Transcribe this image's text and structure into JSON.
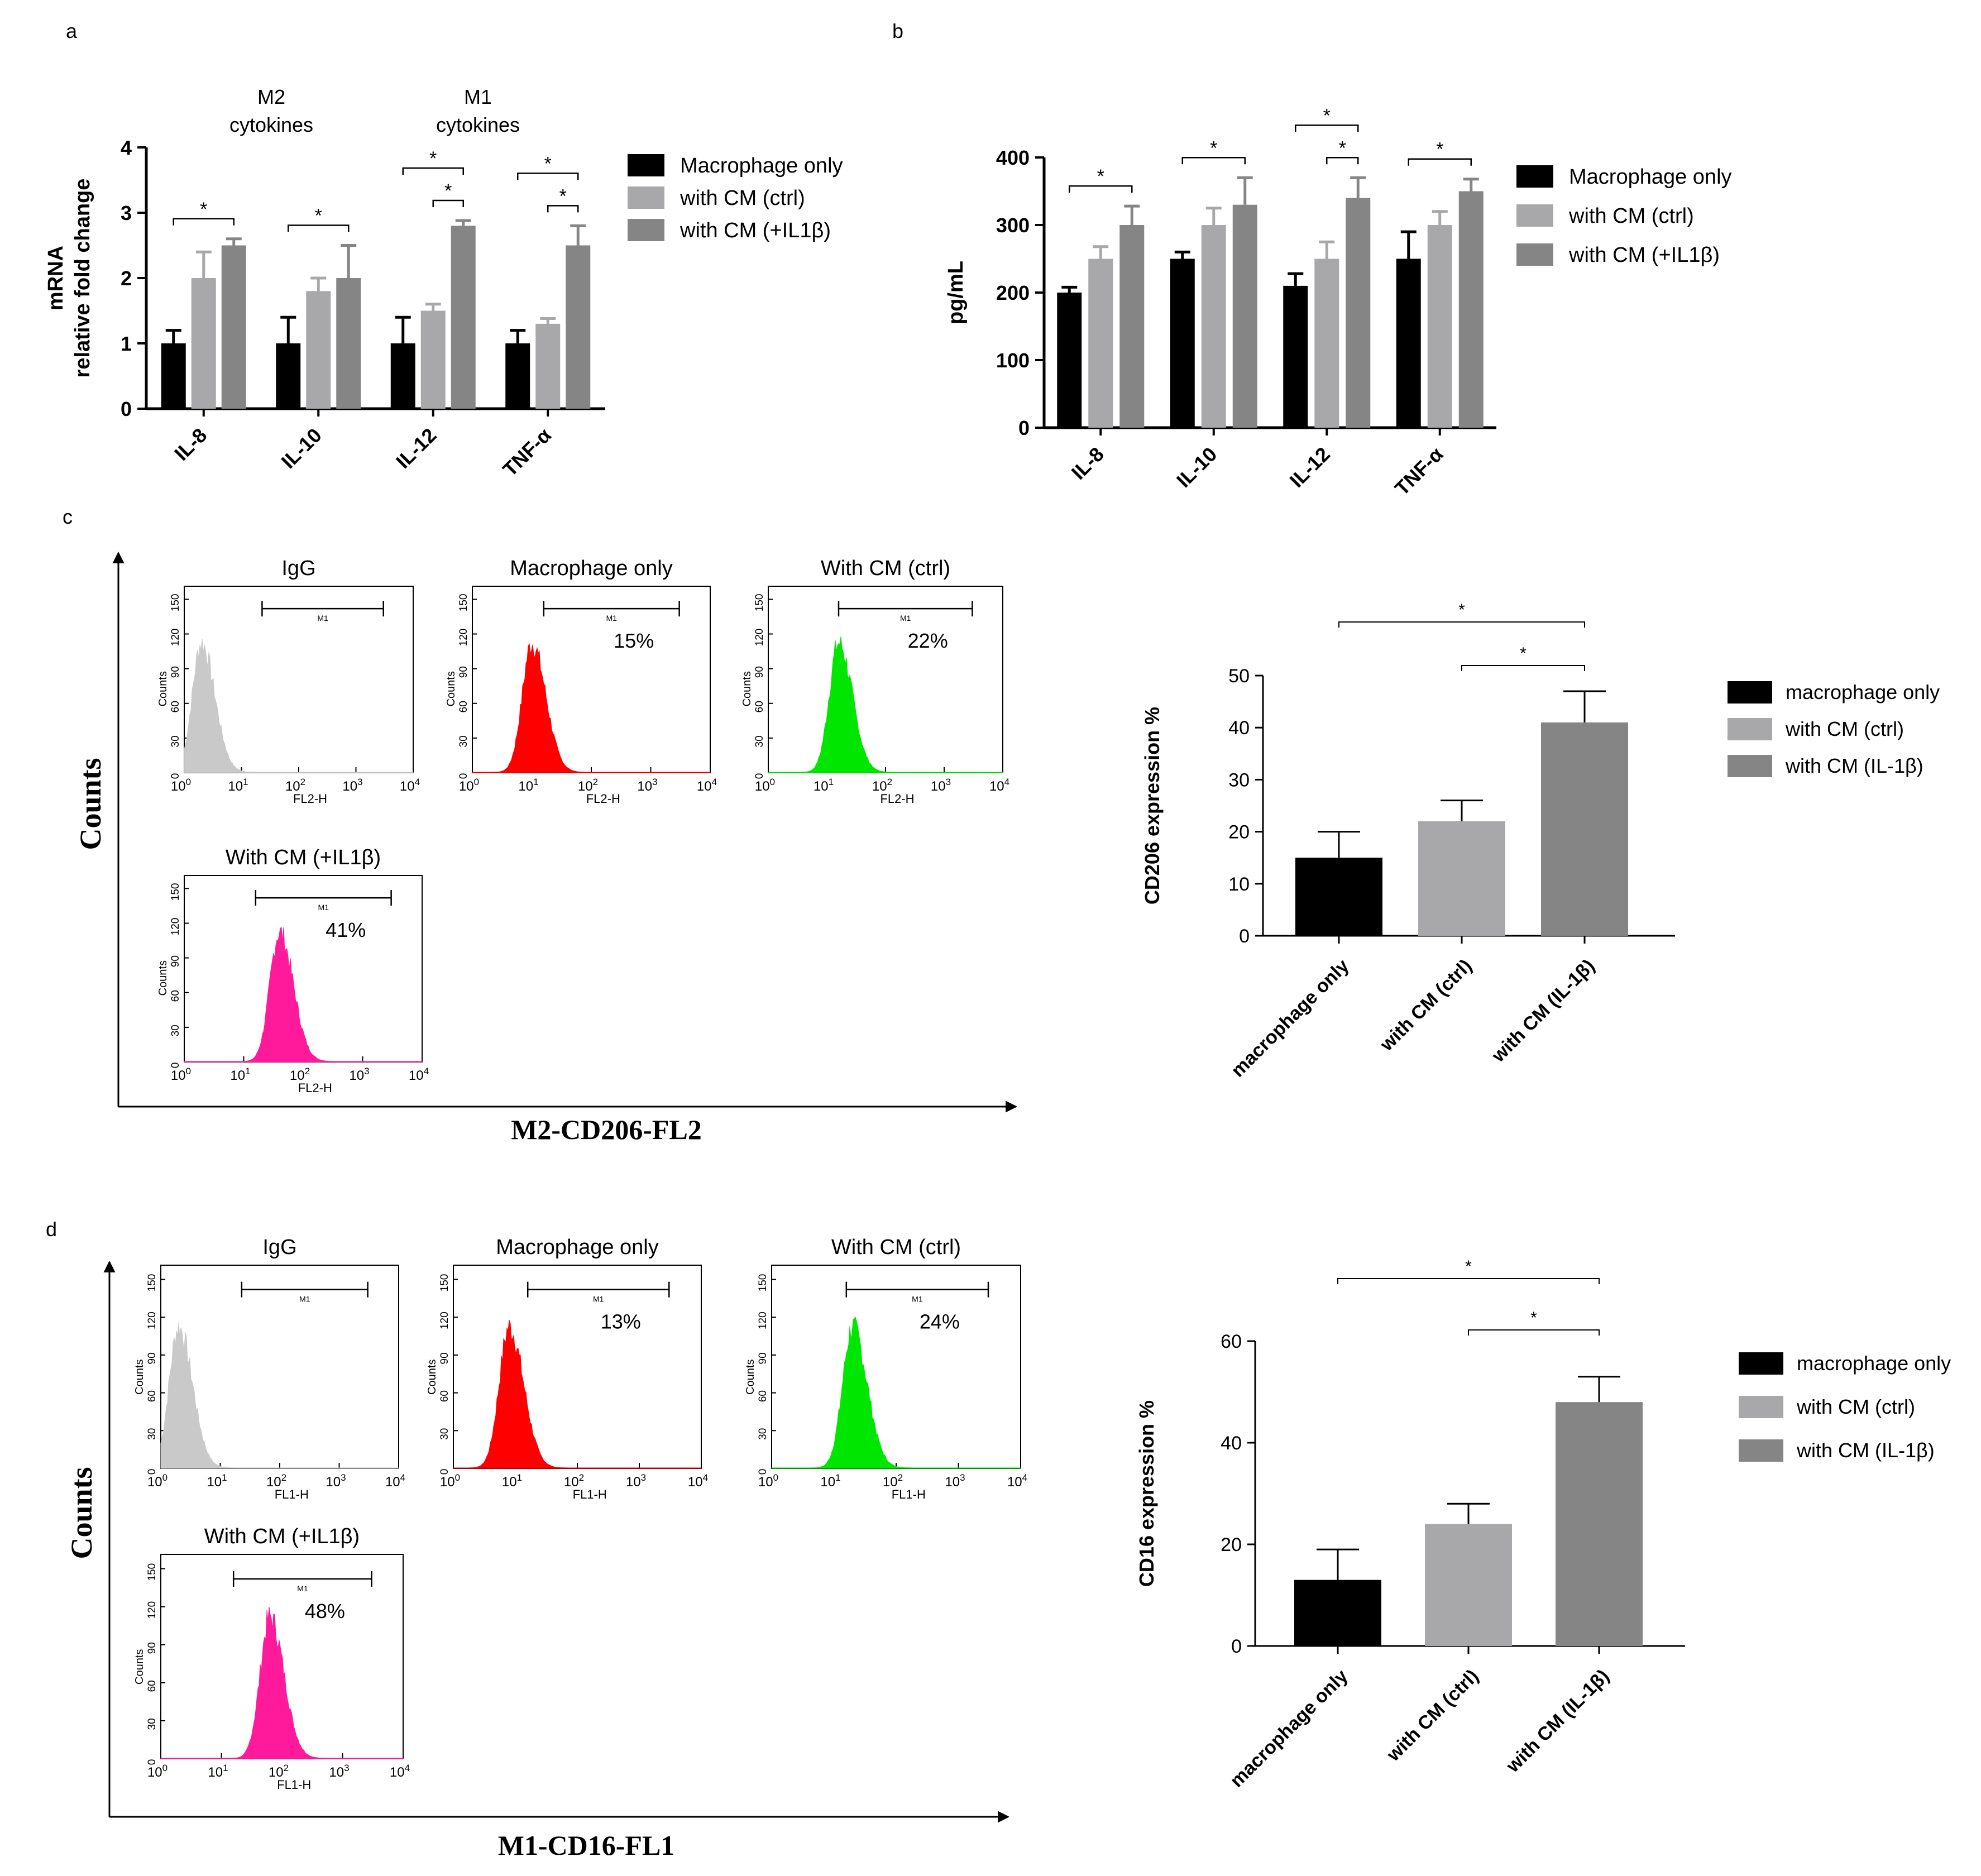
{
  "colors": {
    "black_bar": "#000000",
    "light_bar": "#a8a8aa",
    "dark_bar": "#858585",
    "igg": "#c9c9c9",
    "red": "#ff0000",
    "green": "#00e600",
    "magenta": "#ff1a9c"
  },
  "panels": {
    "a": {
      "label": "a",
      "m2_line1": "M2",
      "m2_line2": "cytokines",
      "m1_line1": "M1",
      "m1_line2": "cytokines"
    },
    "b": {
      "label": "b"
    },
    "c": {
      "label": "c",
      "y_axis": "Counts",
      "x_axis": "M2-CD206-FL2"
    },
    "d": {
      "label": "d",
      "y_axis": "Counts",
      "x_axis": "M1-CD16-FL1"
    }
  },
  "flow": {
    "c": [
      {
        "title": "IgG",
        "pct": "",
        "channel": "FL2-H",
        "gate": "M1",
        "color": "igg",
        "peak_decade": 0.3
      },
      {
        "title": "Macrophage only",
        "pct": "15%",
        "channel": "FL2-H",
        "gate": "M1",
        "color": "red",
        "peak_decade": 1.0
      },
      {
        "title": "With CM (ctrl)",
        "pct": "22%",
        "channel": "FL2-H",
        "gate": "M1",
        "color": "green",
        "peak_decade": 1.2
      },
      {
        "title": "With CM (+IL1β)",
        "pct": "41%",
        "channel": "FL2-H",
        "gate": "M1",
        "color": "magenta",
        "peak_decade": 1.6
      }
    ],
    "d": [
      {
        "title": "IgG",
        "pct": "",
        "channel": "FL1-H",
        "gate": "M1",
        "color": "igg",
        "peak_decade": 0.3
      },
      {
        "title": "Macrophage only",
        "pct": "13%",
        "channel": "FL1-H",
        "gate": "M1",
        "color": "red",
        "peak_decade": 0.9
      },
      {
        "title": "With CM (ctrl)",
        "pct": "24%",
        "channel": "FL1-H",
        "gate": "M1",
        "color": "green",
        "peak_decade": 1.3
      },
      {
        "title": "With CM (+IL1β)",
        "pct": "48%",
        "channel": "FL1-H",
        "gate": "M1",
        "color": "magenta",
        "peak_decade": 1.8
      }
    ],
    "y_ticks": [
      "0",
      "30",
      "60",
      "90",
      "120",
      "150"
    ],
    "y_label": "Counts",
    "x_ticks": [
      "10",
      "10",
      "10",
      "10",
      "10"
    ],
    "x_exps": [
      "0",
      "1",
      "2",
      "3",
      "4"
    ]
  },
  "chart_data": [
    {
      "id": "a",
      "type": "bar",
      "ylabel_line1": "mRNA",
      "ylabel_line2": "relative fold change",
      "categories": [
        "IL-8",
        "IL-10",
        "IL-12",
        "TNF-α"
      ],
      "ylim": [
        0,
        4
      ],
      "yticks": [
        0,
        1,
        2,
        3,
        4
      ],
      "series": [
        {
          "name": "Macrophage only",
          "values": [
            1.0,
            1.0,
            1.0,
            1.0
          ],
          "errors": [
            0.2,
            0.4,
            0.4,
            0.2
          ],
          "color": "black_bar"
        },
        {
          "name": "with CM (ctrl)",
          "values": [
            2.0,
            1.8,
            1.5,
            1.3
          ],
          "errors": [
            0.4,
            0.2,
            0.1,
            0.08
          ],
          "color": "light_bar"
        },
        {
          "name": "with CM (+IL1β)",
          "values": [
            2.5,
            2.0,
            2.8,
            2.5
          ],
          "errors": [
            0.1,
            0.5,
            0.08,
            0.3
          ],
          "color": "dark_bar"
        }
      ],
      "significance": [
        {
          "cat": 0,
          "from": 0,
          "to": 2,
          "level": 0,
          "label": "*"
        },
        {
          "cat": 1,
          "from": 0,
          "to": 2,
          "level": 0,
          "label": "*"
        },
        {
          "cat": 2,
          "from": 0,
          "to": 2,
          "level": 1,
          "label": "*"
        },
        {
          "cat": 2,
          "from": 1,
          "to": 2,
          "level": 0,
          "label": "*"
        },
        {
          "cat": 3,
          "from": 0,
          "to": 2,
          "level": 1,
          "label": "*"
        },
        {
          "cat": 3,
          "from": 1,
          "to": 2,
          "level": 0,
          "label": "*"
        }
      ]
    },
    {
      "id": "b",
      "type": "bar",
      "ylabel_line1": "pg/mL",
      "ylabel_line2": "",
      "categories": [
        "IL-8",
        "IL-10",
        "IL-12",
        "TNF-α"
      ],
      "ylim": [
        0,
        400
      ],
      "yticks": [
        0,
        100,
        200,
        300,
        400
      ],
      "series": [
        {
          "name": "Macrophage only",
          "values": [
            200,
            250,
            210,
            250
          ],
          "errors": [
            8,
            10,
            18,
            40
          ],
          "color": "black_bar"
        },
        {
          "name": "with CM (ctrl)",
          "values": [
            250,
            300,
            250,
            300
          ],
          "errors": [
            18,
            25,
            25,
            20
          ],
          "color": "light_bar"
        },
        {
          "name": "with CM (+IL1β)",
          "values": [
            300,
            330,
            340,
            350
          ],
          "errors": [
            28,
            40,
            30,
            18
          ],
          "color": "dark_bar"
        }
      ],
      "significance": [
        {
          "cat": 0,
          "from": 0,
          "to": 2,
          "level": 0,
          "label": "*"
        },
        {
          "cat": 1,
          "from": 0,
          "to": 2,
          "level": 0,
          "label": "*"
        },
        {
          "cat": 2,
          "from": 0,
          "to": 2,
          "level": 1,
          "label": "*"
        },
        {
          "cat": 2,
          "from": 1,
          "to": 2,
          "level": 0,
          "label": "*"
        },
        {
          "cat": 3,
          "from": 0,
          "to": 2,
          "level": 0,
          "label": "*"
        }
      ]
    },
    {
      "id": "c",
      "type": "bar",
      "ylabel": "CD206 expression %",
      "categories": [
        "macrophage only",
        "with CM (ctrl)",
        "with CM (IL-1β)"
      ],
      "legend": [
        "macrophage only",
        "with CM (ctrl)",
        "with CM (IL-1β)"
      ],
      "values": [
        15,
        22,
        41
      ],
      "errors": [
        5,
        4,
        6
      ],
      "colors": [
        "black_bar",
        "light_bar",
        "dark_bar"
      ],
      "ylim": [
        0,
        50
      ],
      "yticks": [
        0,
        10,
        20,
        30,
        40,
        50
      ],
      "significance": [
        {
          "from": 0,
          "to": 2,
          "label": "*"
        },
        {
          "from": 1,
          "to": 2,
          "label": "*"
        }
      ]
    },
    {
      "id": "d",
      "type": "bar",
      "ylabel": "CD16 expression %",
      "categories": [
        "macrophage only",
        "with CM (ctrl)",
        "with CM (IL-1β)"
      ],
      "legend": [
        "macrophage only",
        "with CM (ctrl)",
        "with CM (IL-1β)"
      ],
      "values": [
        13,
        24,
        48
      ],
      "errors": [
        6,
        4,
        5
      ],
      "colors": [
        "black_bar",
        "light_bar",
        "dark_bar"
      ],
      "ylim": [
        0,
        60
      ],
      "yticks": [
        0,
        20,
        40,
        60
      ],
      "significance": [
        {
          "from": 0,
          "to": 2,
          "label": "*"
        },
        {
          "from": 1,
          "to": 2,
          "label": "*"
        }
      ]
    }
  ]
}
